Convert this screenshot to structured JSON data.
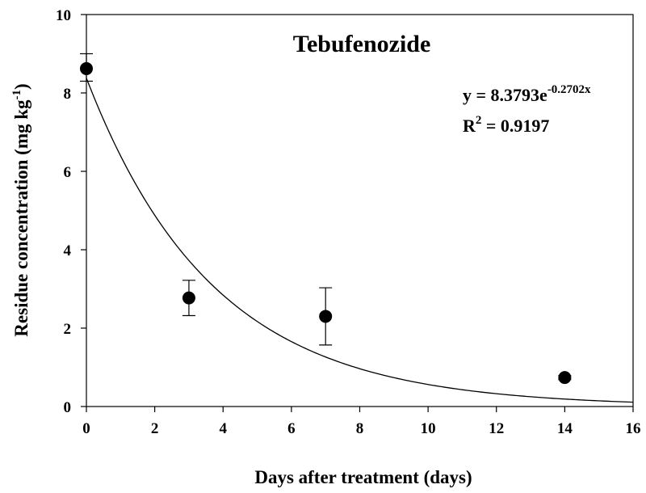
{
  "chart_data": {
    "type": "scatter",
    "title": "Tebufenozide",
    "xlabel": "Days after treatment (days)",
    "ylabel": {
      "main": "Residue concentration (mg kg",
      "superscript": "-1",
      "close": ")"
    },
    "xlim": [
      0,
      16
    ],
    "ylim": [
      0,
      10
    ],
    "x_ticks": [
      "0",
      "2",
      "4",
      "6",
      "8",
      "10",
      "12",
      "14",
      "16"
    ],
    "y_ticks": [
      "0",
      "2",
      "4",
      "6",
      "8",
      "10"
    ],
    "grid": false,
    "legend": "none",
    "points": [
      {
        "x": 0,
        "y": 8.62,
        "err_low": 8.3,
        "err_high": 9.0
      },
      {
        "x": 3,
        "y": 2.77,
        "err_low": 2.32,
        "err_high": 3.22
      },
      {
        "x": 7,
        "y": 2.3,
        "err_low": 1.57,
        "err_high": 3.03
      },
      {
        "x": 14,
        "y": 0.74,
        "err_low": 0.69,
        "err_high": 0.79
      }
    ],
    "fit": {
      "model": "exponential",
      "a": 8.3793,
      "b": -0.2702,
      "equation_prefix": "y = 8.3793e",
      "equation_exponent": "-0.2702x",
      "r2_prefix": "R",
      "r2_superscript": "2",
      "r2_value": " = 0.9197"
    }
  }
}
